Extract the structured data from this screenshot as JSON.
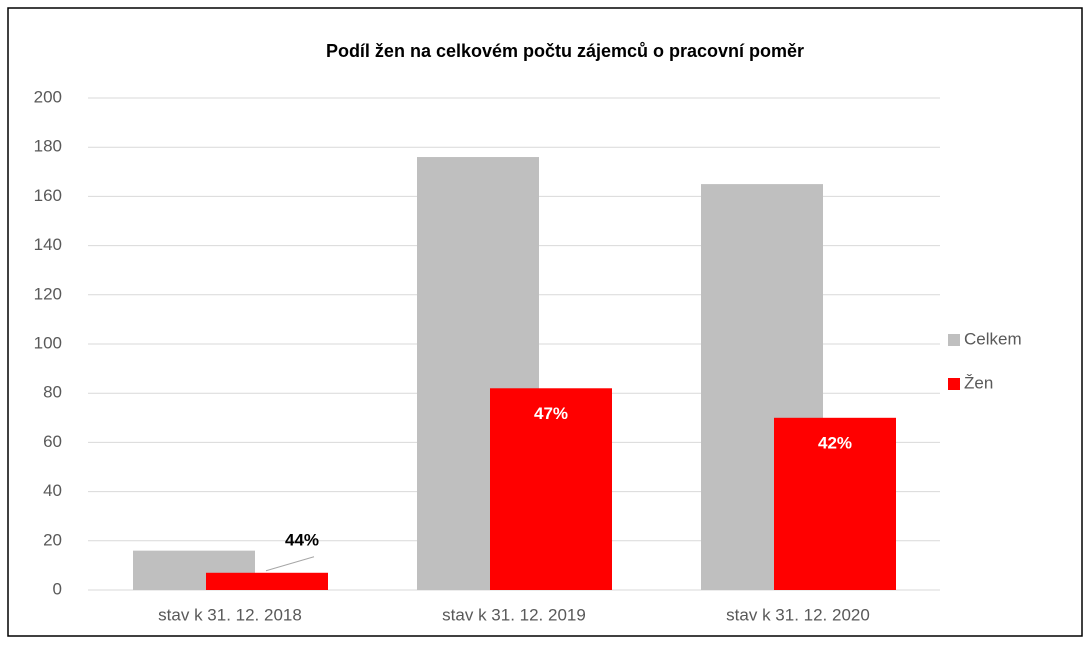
{
  "chart_data": {
    "type": "bar",
    "title": "Podíl žen na celkovém počtu  zájemců o pracovní poměr",
    "categories": [
      "stav k 31. 12. 2018",
      "stav k 31. 12. 2019",
      "stav k 31. 12. 2020"
    ],
    "series": [
      {
        "name": "Celkem",
        "color": "#bfbfbf",
        "values": [
          16,
          176,
          165
        ]
      },
      {
        "name": "Žen",
        "color": "#ff0000",
        "values": [
          7,
          82,
          70
        ],
        "annotations": [
          "44%",
          "47%",
          "42%"
        ]
      }
    ],
    "ylim": [
      0,
      200
    ],
    "yticks": [
      0,
      20,
      40,
      60,
      80,
      100,
      120,
      140,
      160,
      180,
      200
    ],
    "grid": true,
    "legend": "right"
  }
}
